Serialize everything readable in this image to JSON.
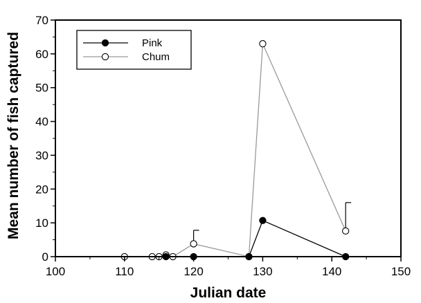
{
  "chart_data": {
    "type": "line",
    "title": "",
    "xlabel": "Julian date",
    "ylabel": "Mean number of fish captured",
    "xlim": [
      100,
      150
    ],
    "ylim": [
      0,
      70
    ],
    "xticks": [
      100,
      110,
      120,
      130,
      140,
      150
    ],
    "yticks": [
      0,
      10,
      20,
      30,
      40,
      50,
      60,
      70
    ],
    "grid": false,
    "legend_position": "top-left",
    "series": [
      {
        "name": "Pink",
        "marker": "filled-circle",
        "color": "#000000",
        "x": [
          116,
          120,
          128,
          130,
          142
        ],
        "y": [
          0,
          0,
          0,
          10.7,
          0
        ]
      },
      {
        "name": "Chum",
        "marker": "open-circle",
        "color": "#999999",
        "x": [
          110,
          114,
          115,
          116,
          117,
          120,
          128,
          130,
          142
        ],
        "y": [
          0,
          0,
          0,
          0.5,
          0,
          3.8,
          0,
          63,
          7.6
        ],
        "error_upper": [
          0,
          0,
          0,
          0,
          0,
          7.8,
          0,
          0,
          16
        ]
      }
    ]
  }
}
